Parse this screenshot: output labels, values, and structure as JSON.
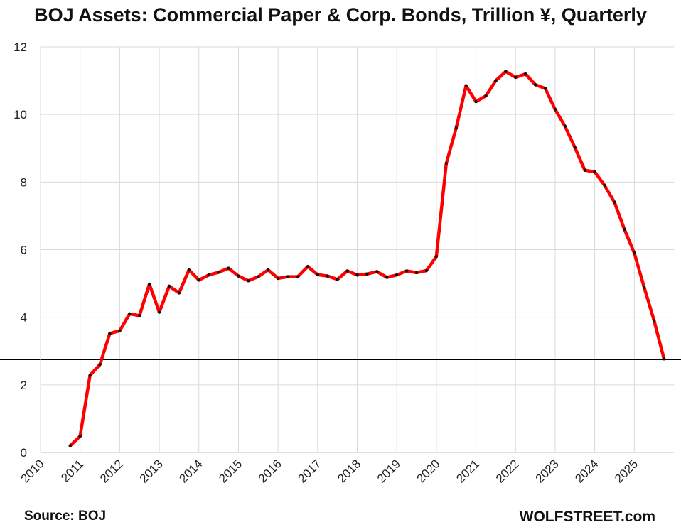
{
  "chart_data": {
    "type": "line",
    "title": "BOJ Assets: Commercial Paper & Corp. Bonds, Trillion ¥, Quarterly",
    "source_label": "Source: BOJ",
    "watermark": "WOLFSTREET.com",
    "xlabel": "",
    "ylabel": "",
    "xlim": [
      2010,
      2026
    ],
    "ylim": [
      0,
      12
    ],
    "yticks": [
      0,
      2,
      4,
      6,
      8,
      10,
      12
    ],
    "xtick_labels": [
      "2010",
      "2011",
      "2012",
      "2013",
      "2014",
      "2015",
      "2016",
      "2017",
      "2018",
      "2019",
      "2020",
      "2021",
      "2022",
      "2023",
      "2024",
      "2025"
    ],
    "grid": true,
    "reference_line": 2.75,
    "line_color": "#ff0000",
    "marker_color": "#111111",
    "series": [
      {
        "name": "BOJ Commercial Paper & Corp. Bonds",
        "x": [
          2010.75,
          2011.0,
          2011.25,
          2011.5,
          2011.75,
          2012.0,
          2012.25,
          2012.5,
          2012.75,
          2013.0,
          2013.25,
          2013.5,
          2013.75,
          2014.0,
          2014.25,
          2014.5,
          2014.75,
          2015.0,
          2015.25,
          2015.5,
          2015.75,
          2016.0,
          2016.25,
          2016.5,
          2016.75,
          2017.0,
          2017.25,
          2017.5,
          2017.75,
          2018.0,
          2018.25,
          2018.5,
          2018.75,
          2019.0,
          2019.25,
          2019.5,
          2019.75,
          2020.0,
          2020.25,
          2020.5,
          2020.75,
          2021.0,
          2021.25,
          2021.5,
          2021.75,
          2022.0,
          2022.25,
          2022.5,
          2022.75,
          2023.0,
          2023.25,
          2023.5,
          2023.75,
          2024.0,
          2024.25,
          2024.5,
          2024.75,
          2025.0,
          2025.25,
          2025.5,
          2025.75
        ],
        "values": [
          0.2,
          0.48,
          2.28,
          2.6,
          3.52,
          3.6,
          4.1,
          4.05,
          4.98,
          4.15,
          4.92,
          4.72,
          5.4,
          5.1,
          5.25,
          5.33,
          5.45,
          5.22,
          5.08,
          5.2,
          5.4,
          5.15,
          5.2,
          5.2,
          5.5,
          5.26,
          5.22,
          5.12,
          5.37,
          5.25,
          5.28,
          5.35,
          5.18,
          5.25,
          5.37,
          5.32,
          5.38,
          5.8,
          8.55,
          9.6,
          10.85,
          10.38,
          10.55,
          11.0,
          11.27,
          11.1,
          11.2,
          10.88,
          10.77,
          10.15,
          9.65,
          9.02,
          8.35,
          8.3,
          7.9,
          7.4,
          6.6,
          5.9,
          4.88,
          3.9,
          2.77
        ]
      }
    ]
  }
}
